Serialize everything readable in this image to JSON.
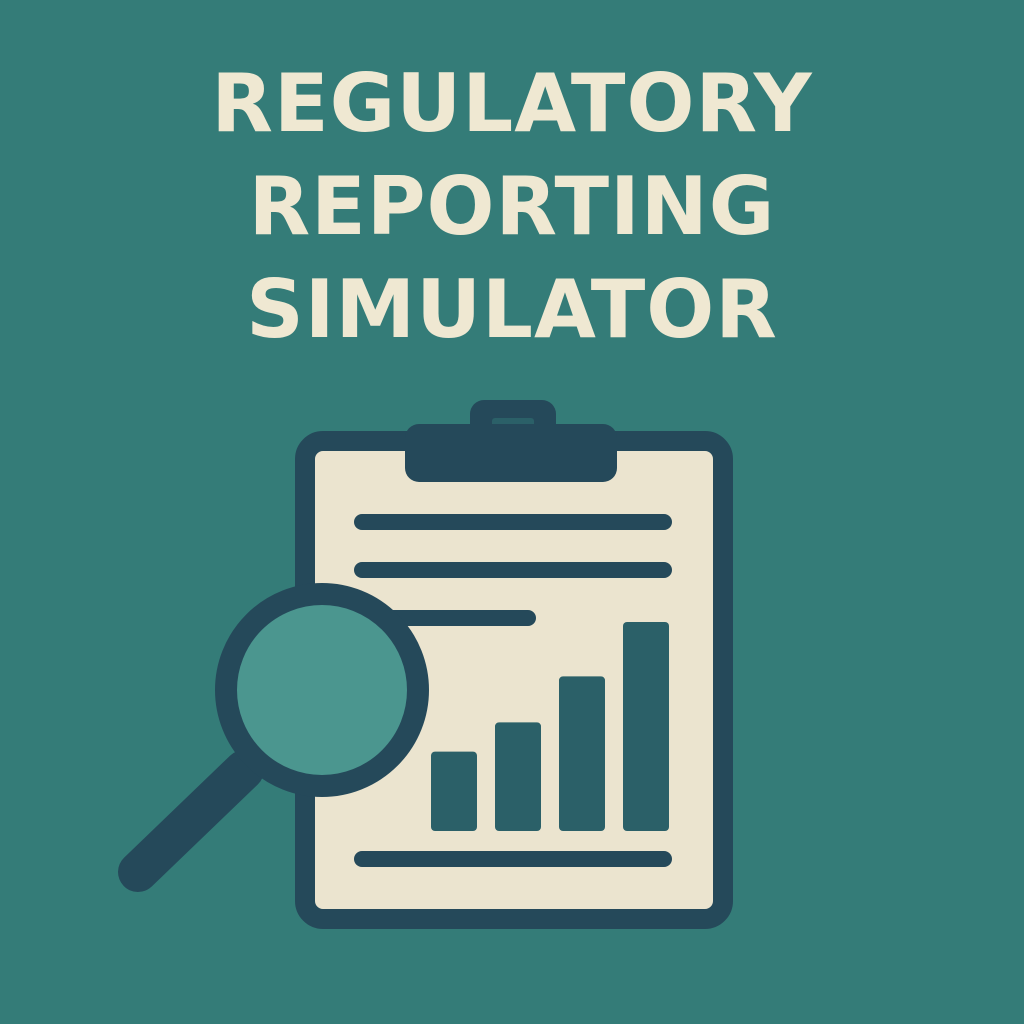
{
  "title": {
    "lines": [
      "REGULATORY",
      "REPORTING",
      "SIMULATOR"
    ]
  },
  "illustration": {
    "icons": [
      "clipboard-icon",
      "bar-chart-icon",
      "magnifying-glass-icon"
    ],
    "bar_levels": [
      0.38,
      0.52,
      0.74,
      1.0
    ]
  },
  "colors": {
    "background": "#347c78",
    "title_text": "#efe8d2",
    "outline": "#25495a",
    "paper": "#ebe4cf",
    "bar_fill": "#2b6068",
    "lens": "#4b968f"
  }
}
